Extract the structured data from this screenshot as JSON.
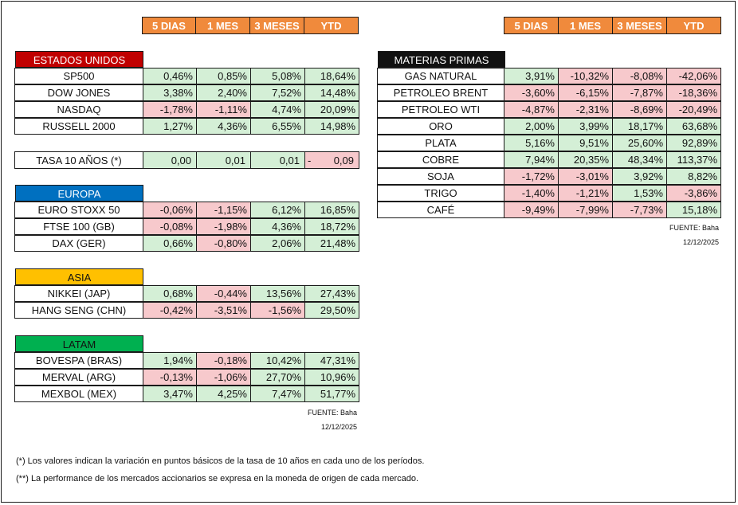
{
  "headers": [
    "5 DIAS",
    "1 MES",
    "3 MESES",
    "YTD"
  ],
  "colors": {
    "header": "#f08a3c",
    "usa": "#c00000",
    "europa": "#0070c0",
    "asia": "#ffc000",
    "latam": "#00b050",
    "materias": "#111111",
    "positive": "#d4efd6",
    "negative": "#f7c9cc"
  },
  "usa": {
    "title": "ESTADOS UNIDOS",
    "rows": [
      {
        "name": "SP500",
        "v": [
          "0,46%",
          "0,85%",
          "5,08%",
          "18,64%"
        ]
      },
      {
        "name": "DOW JONES",
        "v": [
          "3,38%",
          "2,40%",
          "7,52%",
          "14,48%"
        ]
      },
      {
        "name": "NASDAQ",
        "v": [
          "-1,78%",
          "-1,11%",
          "4,74%",
          "20,09%"
        ]
      },
      {
        "name": "RUSSELL 2000",
        "v": [
          "1,27%",
          "4,36%",
          "6,55%",
          "14,98%"
        ]
      }
    ]
  },
  "tasa": {
    "name": "TASA 10 AÑOS (*)",
    "v": [
      "0,00",
      "0,01",
      "0,01",
      "0,09"
    ],
    "sign": "-"
  },
  "europa": {
    "title": "EUROPA",
    "rows": [
      {
        "name": "EURO STOXX 50",
        "v": [
          "-0,06%",
          "-1,15%",
          "6,12%",
          "16,85%"
        ]
      },
      {
        "name": "FTSE 100 (GB)",
        "v": [
          "-0,08%",
          "-1,98%",
          "4,36%",
          "18,72%"
        ]
      },
      {
        "name": "DAX (GER)",
        "v": [
          "0,66%",
          "-0,80%",
          "2,06%",
          "21,48%"
        ]
      }
    ]
  },
  "asia": {
    "title": "ASIA",
    "rows": [
      {
        "name": "NIKKEI (JAP)",
        "v": [
          "0,68%",
          "-0,44%",
          "13,56%",
          "27,43%"
        ]
      },
      {
        "name": "HANG SENG (CHN)",
        "v": [
          "-0,42%",
          "-3,51%",
          "-1,56%",
          "29,50%"
        ]
      }
    ]
  },
  "latam": {
    "title": "LATAM",
    "rows": [
      {
        "name": "BOVESPA (BRAS)",
        "v": [
          "1,94%",
          "-0,18%",
          "10,42%",
          "47,31%"
        ]
      },
      {
        "name": "MERVAL (ARG)",
        "v": [
          "-0,13%",
          "-1,06%",
          "27,70%",
          "10,96%"
        ]
      },
      {
        "name": "MEXBOL (MEX)",
        "v": [
          "3,47%",
          "4,25%",
          "7,47%",
          "51,77%"
        ]
      }
    ]
  },
  "materias": {
    "title": "MATERIAS PRIMAS",
    "rows": [
      {
        "name": "GAS NATURAL",
        "v": [
          "3,91%",
          "-10,32%",
          "-8,08%",
          "-42,06%"
        ]
      },
      {
        "name": "PETROLEO BRENT",
        "v": [
          "-3,60%",
          "-6,15%",
          "-7,87%",
          "-18,36%"
        ]
      },
      {
        "name": "PETROLEO WTI",
        "v": [
          "-4,87%",
          "-2,31%",
          "-8,69%",
          "-20,49%"
        ]
      },
      {
        "name": "ORO",
        "v": [
          "2,00%",
          "3,99%",
          "18,17%",
          "63,68%"
        ]
      },
      {
        "name": "PLATA",
        "v": [
          "5,16%",
          "9,51%",
          "25,60%",
          "92,89%"
        ]
      },
      {
        "name": "COBRE",
        "v": [
          "7,94%",
          "20,35%",
          "48,34%",
          "113,37%"
        ]
      },
      {
        "name": "SOJA",
        "v": [
          "-1,72%",
          "-3,01%",
          "3,92%",
          "8,82%"
        ]
      },
      {
        "name": "TRIGO",
        "v": [
          "-1,40%",
          "-1,21%",
          "1,53%",
          "-3,86%"
        ]
      },
      {
        "name": "CAFÉ",
        "v": [
          "-9,49%",
          "-7,99%",
          "-7,73%",
          "15,18%"
        ]
      }
    ]
  },
  "source_left": {
    "label": "FUENTE: Baha",
    "date": "12/12/2025"
  },
  "source_right": {
    "label": "FUENTE: Baha",
    "date": "12/12/2025"
  },
  "notes": [
    "(*) Los valores indican la variación en puntos básicos de la tasa de 10 años en cada uno de los períodos.",
    "(**) La performance de los mercados accionarios se expresa en la moneda de origen de cada mercado."
  ]
}
